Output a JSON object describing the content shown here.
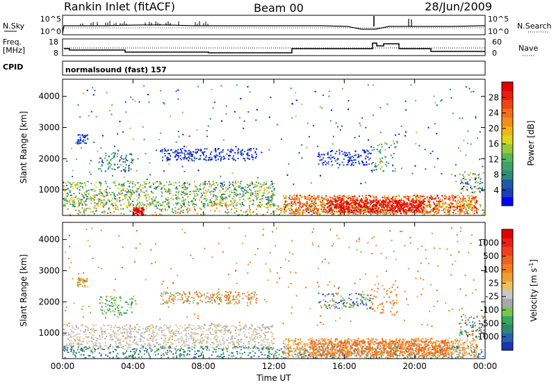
{
  "header": {
    "radar": "Rankin Inlet (fitACF)",
    "beam": "Beam 00",
    "date": "28/Jun/2009"
  },
  "top_panels": {
    "nsky_label": "N.Sky",
    "nsearch_label": "N.Search",
    "freq_label_1": "Freq.",
    "freq_label_2": "[MHz]",
    "nave_label": "Nave",
    "cpid_label": "CPID",
    "cpid_value": "normalsound (fast) 157",
    "noise_ticks_left": [
      "10^5",
      "10^0"
    ],
    "noise_ticks_right": [
      "10^5",
      "10^0"
    ],
    "freq_ticks": [
      "18",
      "8"
    ],
    "nave_ticks": [
      "60",
      "0"
    ]
  },
  "chart_data": [
    {
      "type": "heatmap",
      "panel": "power",
      "ylabel": "Slant Range [km]",
      "ylim": [
        180,
        4550
      ],
      "yticks": [
        1000,
        2000,
        3000,
        4000
      ],
      "xlim": [
        0,
        24
      ],
      "xtick_labels": [
        "00:00",
        "04:00",
        "08:00",
        "12:00",
        "16:00",
        "20:00",
        "00:00"
      ],
      "colorbar": {
        "label": "Power [dB]",
        "ticks": [
          "28",
          "24",
          "20",
          "16",
          "12",
          "8",
          "4"
        ],
        "colors": [
          "#0000ff",
          "#1c3fb3",
          "#1f5aa6",
          "#2f8b7a",
          "#3fa06a",
          "#5ab45a",
          "#9ac83a",
          "#d8d820",
          "#f2b418",
          "#f09018",
          "#f07018",
          "#ee4418",
          "#e81e14",
          "#e00000"
        ]
      }
    },
    {
      "type": "heatmap",
      "panel": "velocity",
      "ylabel": "Slant Range [km]",
      "ylim": [
        180,
        4550
      ],
      "yticks": [
        1000,
        2000,
        3000,
        4000
      ],
      "xlim": [
        0,
        24
      ],
      "xtick_labels": [
        "00:00",
        "04:00",
        "08:00",
        "12:00",
        "16:00",
        "20:00",
        "00:00"
      ],
      "xlabel": "Time UT",
      "colorbar": {
        "label_main": "Velocity",
        "label_units": "[m s",
        "label_sup": "-1",
        "label_close": "]",
        "ticks": [
          "1000",
          "500",
          "100",
          "25",
          "-25",
          "-100",
          "-500",
          "-1000"
        ],
        "colors": [
          "#1c36b4",
          "#2a5fb0",
          "#2e8870",
          "#3aa65a",
          "#78c850",
          "#a8a8a8",
          "#c8c8c8",
          "#f0c060",
          "#f0a030",
          "#f08020",
          "#f06020",
          "#ee4020",
          "#e82018",
          "#e00000"
        ]
      }
    }
  ]
}
